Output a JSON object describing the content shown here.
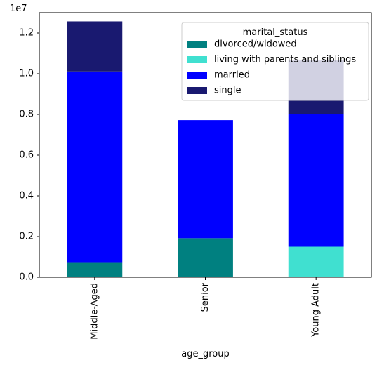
{
  "chart_data": {
    "type": "bar",
    "stacked": true,
    "categories": [
      "Middle-Aged",
      "Senior",
      "Young Adult"
    ],
    "series": [
      {
        "name": "divorced/widowed",
        "color": "#008080",
        "values": [
          740000,
          1920000,
          0
        ]
      },
      {
        "name": "living with parents and siblings",
        "color": "#40e0d0",
        "values": [
          0,
          0,
          1500000
        ]
      },
      {
        "name": "married",
        "color": "#0000ff",
        "values": [
          9370000,
          5800000,
          6520000
        ]
      },
      {
        "name": "single",
        "color": "#191970",
        "values": [
          2460000,
          0,
          2630000
        ]
      }
    ],
    "xlabel": "age_group",
    "ylabel": "",
    "ylim": [
      0,
      13000000
    ],
    "yticks": [
      0,
      2000000,
      4000000,
      6000000,
      8000000,
      10000000,
      12000000
    ],
    "ytick_labels": [
      "0.0",
      "0.2",
      "0.4",
      "0.6",
      "0.8",
      "1.0",
      "1.2"
    ],
    "offset_text": "1e7",
    "legend_title": "marital_status",
    "legend_position": "top-right",
    "grid": false
  }
}
